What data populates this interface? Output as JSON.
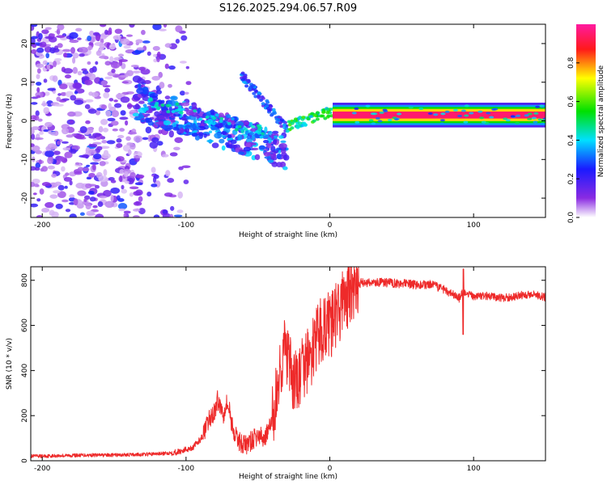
{
  "figure_title": "S126.2025.294.06.57.R09",
  "chart_data": [
    {
      "type": "heatmap",
      "title": "S126.2025.294.06.57.R09",
      "xlabel": "Height of straight line (km)",
      "ylabel": "Frequency (Hz)",
      "xlim": [
        -208,
        150
      ],
      "ylim": [
        -25,
        25
      ],
      "xticks": [
        -200,
        -100,
        0,
        100
      ],
      "yticks": [
        -20,
        -10,
        0,
        10,
        20
      ],
      "colorbar": {
        "label": "Normalized spectral amplitude",
        "range": [
          0,
          1
        ],
        "ticks": [
          0.0,
          0.2,
          0.4,
          0.6,
          0.8
        ],
        "tick_labels": [
          "0.0",
          "0.2",
          "0.4",
          "0.6",
          "0.8"
        ],
        "colormap": "rainbow (white → violet → blue → cyan → green → yellow → red → magenta)"
      },
      "features": [
        {
          "name": "scattered noise",
          "x_range": [
            -208,
            -110
          ],
          "freq_range": [
            -25,
            25
          ],
          "amplitude": "0.1–0.3"
        },
        {
          "name": "descending cluster",
          "x_range": [
            -135,
            -30
          ],
          "freq_start": 5,
          "freq_end": -8,
          "amplitude": "0.2–0.5"
        },
        {
          "name": "secondary streak",
          "x_range": [
            -60,
            -30
          ],
          "freq_start": 12,
          "freq_end": -2,
          "amplitude": "0.2–0.4"
        },
        {
          "name": "stable carrier line",
          "x_range": [
            -30,
            150
          ],
          "freq": 1.5,
          "amplitude": "0.9–1.0"
        }
      ]
    },
    {
      "type": "line",
      "xlabel": "Height of straight line (km)",
      "ylabel": "SNR (10 * v/v)",
      "xlim": [
        -208,
        150
      ],
      "ylim": [
        0,
        860
      ],
      "xticks": [
        -200,
        -100,
        0,
        100
      ],
      "yticks": [
        0,
        200,
        400,
        600,
        800
      ],
      "series": [
        {
          "name": "SNR",
          "color": "#ee2a2a",
          "x": [
            -208,
            -190,
            -170,
            -150,
            -130,
            -115,
            -105,
            -95,
            -88,
            -84,
            -80,
            -78,
            -76,
            -74,
            -72,
            -70,
            -68,
            -66,
            -62,
            -58,
            -54,
            -50,
            -46,
            -42,
            -38,
            -35,
            -32,
            -29,
            -26,
            -22,
            -18,
            -14,
            -10,
            -6,
            -2,
            2,
            6,
            10,
            14,
            18,
            22,
            26,
            30,
            40,
            50,
            60,
            70,
            80,
            90,
            92,
            95,
            100,
            110,
            120,
            130,
            140,
            150
          ],
          "y": [
            20,
            22,
            25,
            25,
            28,
            32,
            40,
            60,
            110,
            180,
            220,
            270,
            240,
            210,
            260,
            230,
            160,
            110,
            80,
            70,
            90,
            110,
            100,
            140,
            250,
            380,
            500,
            450,
            350,
            350,
            420,
            450,
            520,
            580,
            600,
            610,
            660,
            720,
            740,
            770,
            790,
            790,
            790,
            790,
            785,
            780,
            780,
            760,
            720,
            740,
            740,
            730,
            730,
            720,
            730,
            740,
            725
          ]
        }
      ],
      "annotations": [
        {
          "x": 93,
          "y": 850,
          "note": "spike"
        },
        {
          "x": 93,
          "y": 560,
          "note": "dip"
        }
      ]
    }
  ]
}
